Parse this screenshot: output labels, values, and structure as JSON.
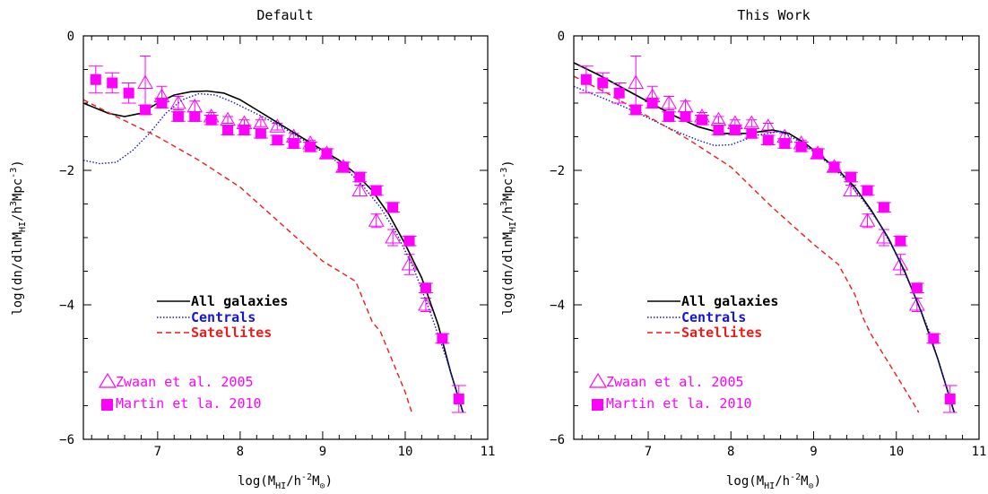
{
  "colors": {
    "all": "#000000",
    "centrals": "#1515d6",
    "satellites": "#ee1c1c",
    "observations": "#ff00ff"
  },
  "legend": {
    "all": "All galaxies",
    "centrals": "Centrals",
    "satellites": "Satellites",
    "zwaan": "Zwaan et al. 2005",
    "martin": "Martin et la. 2010"
  },
  "chart_data": [
    {
      "type": "line",
      "title": "Default",
      "xlabel": "log(M_HI/h^-2 M_⊙)",
      "ylabel": "log(dn/dlnM_HI/h^3Mpc^-3)",
      "xlim": [
        6.1,
        11.0
      ],
      "ylim": [
        -6.0,
        0.0
      ],
      "xticks": [
        7,
        8,
        9,
        10,
        11
      ],
      "yticks": [
        0,
        -2,
        -4,
        -6
      ],
      "series": [
        {
          "name": "All galaxies",
          "style": "solid",
          "x": [
            6.1,
            6.4,
            6.6,
            6.8,
            7.0,
            7.2,
            7.4,
            7.6,
            7.8,
            8.0,
            8.2,
            8.4,
            8.6,
            8.8,
            9.0,
            9.2,
            9.4,
            9.6,
            9.8,
            10.0,
            10.2,
            10.4,
            10.55,
            10.7
          ],
          "y": [
            -1.0,
            -1.15,
            -1.2,
            -1.15,
            -1.0,
            -0.88,
            -0.83,
            -0.82,
            -0.85,
            -0.95,
            -1.1,
            -1.25,
            -1.4,
            -1.55,
            -1.7,
            -1.85,
            -2.05,
            -2.3,
            -2.65,
            -3.1,
            -3.6,
            -4.3,
            -5.0,
            -5.6
          ]
        },
        {
          "name": "Centrals",
          "style": "dotted",
          "x": [
            6.1,
            6.3,
            6.5,
            6.7,
            6.9,
            7.1,
            7.3,
            7.5,
            7.7,
            7.9,
            8.1,
            8.3,
            8.5,
            8.7,
            8.9,
            9.1,
            9.3,
            9.5,
            9.7,
            9.9,
            10.1,
            10.3,
            10.5,
            10.7
          ],
          "y": [
            -1.85,
            -1.9,
            -1.88,
            -1.7,
            -1.45,
            -1.15,
            -0.95,
            -0.86,
            -0.88,
            -0.98,
            -1.1,
            -1.22,
            -1.35,
            -1.5,
            -1.65,
            -1.8,
            -2.0,
            -2.25,
            -2.55,
            -2.95,
            -3.45,
            -4.1,
            -4.8,
            -5.6
          ]
        },
        {
          "name": "Satellites",
          "style": "dashed",
          "x": [
            6.1,
            6.5,
            7.0,
            7.5,
            8.0,
            8.5,
            9.0,
            9.2,
            9.4,
            9.5,
            9.6,
            9.7,
            9.8,
            9.9,
            10.0,
            10.08
          ],
          "y": [
            -0.95,
            -1.2,
            -1.5,
            -1.85,
            -2.25,
            -2.8,
            -3.35,
            -3.5,
            -3.65,
            -3.95,
            -4.25,
            -4.4,
            -4.7,
            -5.0,
            -5.3,
            -5.6
          ]
        }
      ]
    },
    {
      "type": "line",
      "title": "This Work",
      "xlabel": "log(M_HI/h^-2 M_⊙)",
      "ylabel": "log(dn/dlnM_HI/h^3Mpc^-3)",
      "xlim": [
        6.1,
        11.0
      ],
      "ylim": [
        -6.0,
        0.0
      ],
      "xticks": [
        7,
        8,
        9,
        10,
        11
      ],
      "yticks": [
        0,
        -2,
        -4,
        -6
      ],
      "series": [
        {
          "name": "All galaxies",
          "style": "solid",
          "x": [
            6.1,
            6.4,
            6.7,
            7.0,
            7.3,
            7.6,
            7.9,
            8.2,
            8.5,
            8.7,
            8.9,
            9.1,
            9.3,
            9.5,
            9.7,
            9.9,
            10.1,
            10.3,
            10.5,
            10.7
          ],
          "y": [
            -0.4,
            -0.58,
            -0.78,
            -0.98,
            -1.18,
            -1.35,
            -1.45,
            -1.45,
            -1.4,
            -1.45,
            -1.6,
            -1.8,
            -2.0,
            -2.25,
            -2.6,
            -3.0,
            -3.5,
            -4.1,
            -4.8,
            -5.6
          ]
        },
        {
          "name": "Centrals",
          "style": "dotted",
          "x": [
            6.1,
            6.4,
            6.7,
            7.0,
            7.3,
            7.6,
            7.8,
            8.0,
            8.3,
            8.6,
            8.8,
            9.0,
            9.2,
            9.4,
            9.6,
            9.8,
            10.0,
            10.2,
            10.4,
            10.6,
            10.7
          ],
          "y": [
            -0.75,
            -0.9,
            -1.05,
            -1.22,
            -1.4,
            -1.55,
            -1.63,
            -1.62,
            -1.48,
            -1.42,
            -1.55,
            -1.72,
            -1.92,
            -2.15,
            -2.45,
            -2.8,
            -3.25,
            -3.8,
            -4.4,
            -5.2,
            -5.6
          ]
        },
        {
          "name": "Satellites",
          "style": "dashed",
          "x": [
            6.1,
            6.5,
            7.0,
            7.5,
            8.0,
            8.5,
            9.0,
            9.3,
            9.5,
            9.6,
            9.7,
            9.8,
            9.9,
            10.0,
            10.1,
            10.2,
            10.27
          ],
          "y": [
            -0.6,
            -0.85,
            -1.2,
            -1.55,
            -1.95,
            -2.55,
            -3.1,
            -3.4,
            -3.85,
            -4.2,
            -4.45,
            -4.65,
            -4.85,
            -5.05,
            -5.25,
            -5.45,
            -5.6
          ]
        }
      ]
    }
  ],
  "observations": {
    "zwaan": {
      "name": "Zwaan et al. 2005",
      "marker": "triangle",
      "x": [
        6.85,
        7.05,
        7.25,
        7.45,
        7.65,
        7.85,
        8.05,
        8.25,
        8.45,
        8.65,
        8.85,
        9.05,
        9.25,
        9.45,
        9.65,
        9.85,
        10.05,
        10.25
      ],
      "y": [
        -0.7,
        -0.9,
        -1.0,
        -1.05,
        -1.2,
        -1.25,
        -1.3,
        -1.3,
        -1.35,
        -1.5,
        -1.6,
        -1.75,
        -1.95,
        -2.3,
        -2.75,
        -3.0,
        -3.4,
        -4.0
      ],
      "err": [
        0.4,
        0.15,
        0.1,
        0.08,
        0.06,
        0.05,
        0.05,
        0.05,
        0.05,
        0.05,
        0.05,
        0.06,
        0.07,
        0.08,
        0.1,
        0.12,
        0.15,
        0.1
      ]
    },
    "martin": {
      "name": "Martin et la. 2010",
      "marker": "square",
      "x": [
        6.25,
        6.45,
        6.65,
        6.85,
        7.05,
        7.25,
        7.45,
        7.65,
        7.85,
        8.05,
        8.25,
        8.45,
        8.65,
        8.85,
        9.05,
        9.25,
        9.45,
        9.65,
        9.85,
        10.05,
        10.25,
        10.45,
        10.65
      ],
      "y": [
        -0.65,
        -0.7,
        -0.85,
        -1.1,
        -1.0,
        -1.2,
        -1.2,
        -1.25,
        -1.4,
        -1.4,
        -1.45,
        -1.55,
        -1.6,
        -1.65,
        -1.75,
        -1.95,
        -2.1,
        -2.3,
        -2.55,
        -3.05,
        -3.75,
        -4.5,
        -5.4
      ]
    }
  }
}
